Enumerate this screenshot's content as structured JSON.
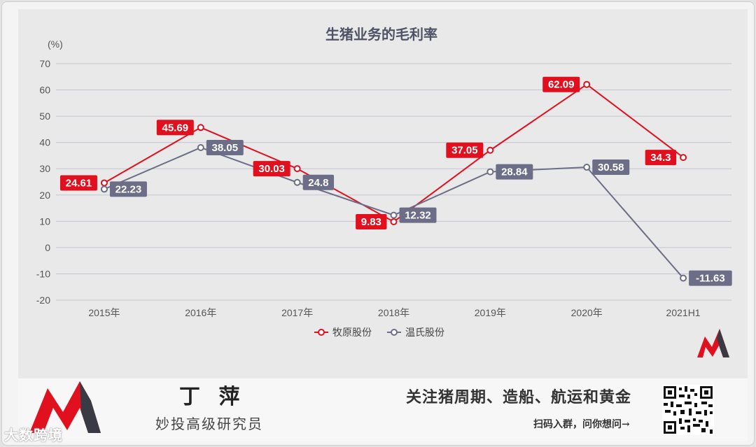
{
  "chart_data": {
    "type": "line",
    "title": "生猪业务的毛利率",
    "ylabel": "(%)",
    "xlabel": "",
    "ylim": [
      -20,
      70
    ],
    "yticks": [
      70,
      60,
      50,
      40,
      30,
      20,
      10,
      0,
      -10,
      -20
    ],
    "categories": [
      "2015年",
      "2016年",
      "2017年",
      "2018年",
      "2019年",
      "2020年",
      "2021H1"
    ],
    "grid": true,
    "legend": "bottom-center",
    "series": [
      {
        "name": "牧原股份",
        "color": "#e0101e",
        "values": [
          24.61,
          45.69,
          30.03,
          9.83,
          37.05,
          62.09,
          34.3
        ],
        "labels": [
          "24.61",
          "45.69",
          "30.03",
          "9.83",
          "37.05",
          "62.09",
          "34.3"
        ],
        "label_side": "left"
      },
      {
        "name": "温氏股份",
        "color": "#6b6e86",
        "values": [
          22.23,
          38.05,
          24.8,
          12.32,
          28.84,
          30.58,
          -11.63
        ],
        "labels": [
          "22.23",
          "38.05",
          "24.8",
          "12.32",
          "28.84",
          "30.58",
          "-11.63"
        ],
        "label_side": "right"
      }
    ]
  },
  "footer": {
    "author_name": "丁 萍",
    "author_title": "妙投高级研究员",
    "slogan": "关注猪周期、造船、航运和黄金",
    "cta": "扫码入群，问你想问→",
    "watermark": "大数跨境"
  },
  "colors": {
    "brand_red": "#e0101e",
    "brand_dark": "#3a3a44"
  }
}
